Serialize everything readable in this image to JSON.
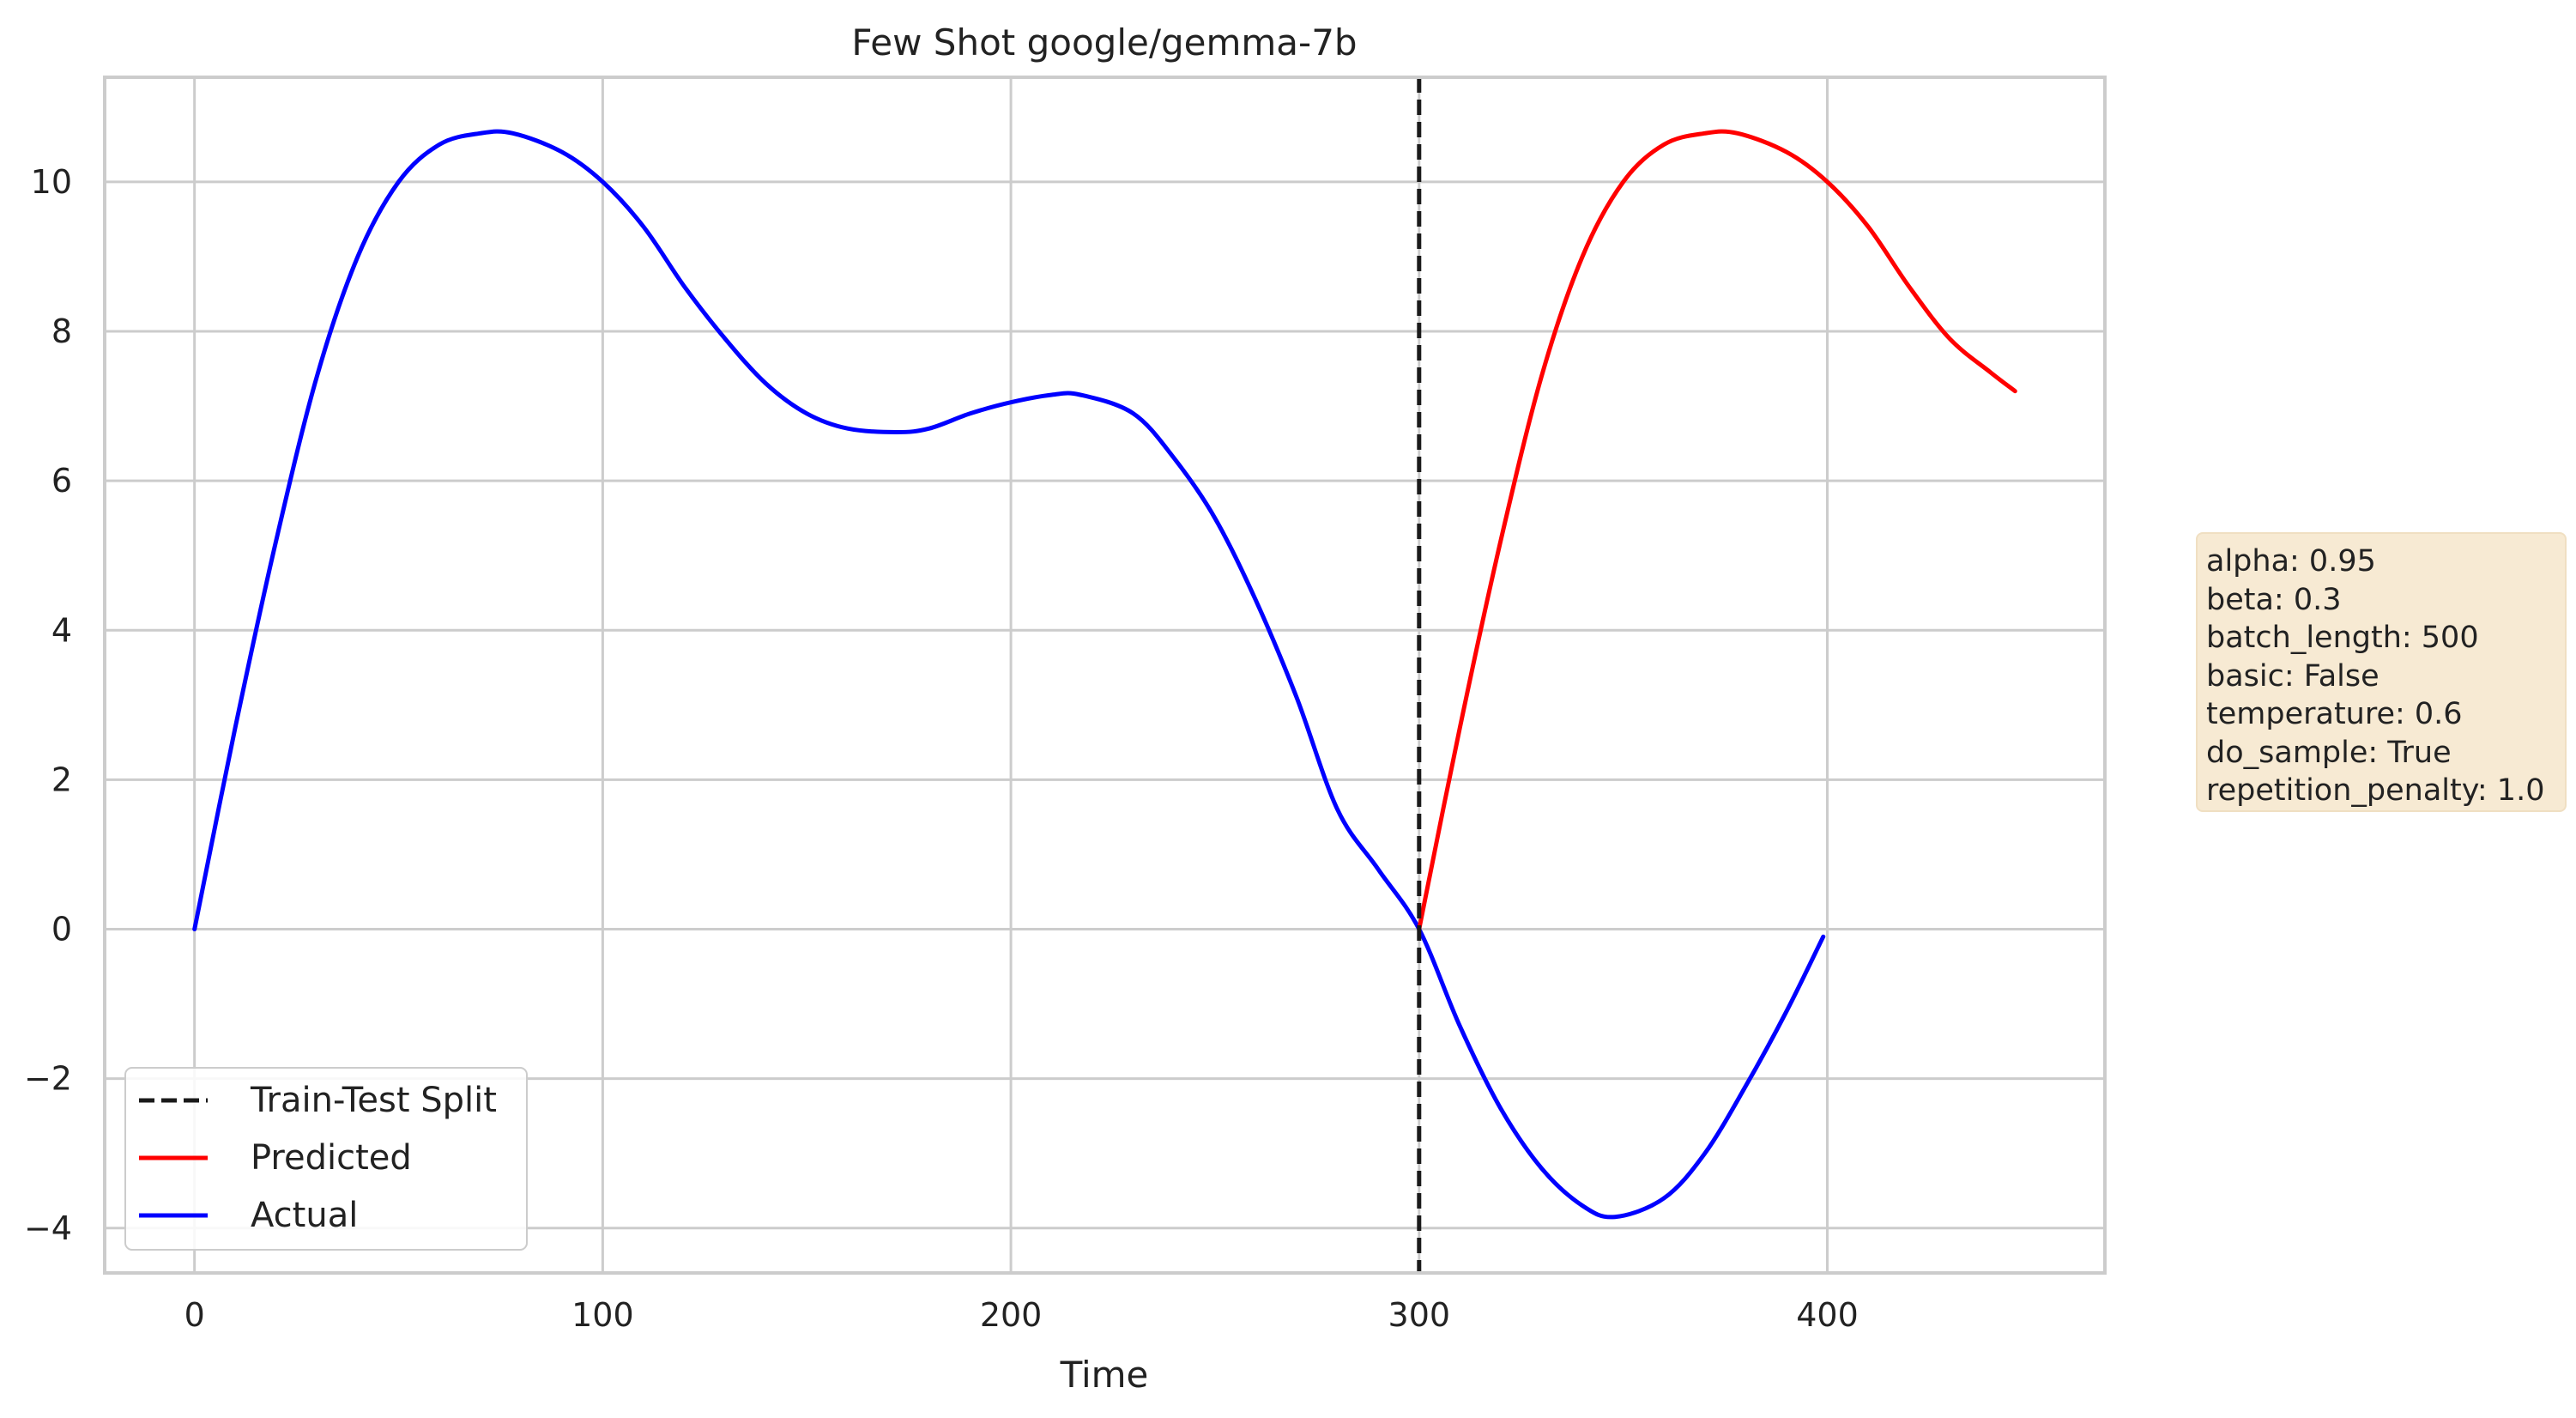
{
  "chart_data": {
    "type": "line",
    "title": "Few Shot google/gemma-7b",
    "xlabel": "Time",
    "ylabel": "",
    "xlim": [
      -22,
      468
    ],
    "ylim": [
      -4.6,
      11.4
    ],
    "xticks": [
      0,
      100,
      200,
      300,
      400
    ],
    "yticks": [
      -4,
      -2,
      0,
      2,
      4,
      6,
      8,
      10
    ],
    "ytick_labels": [
      "−4",
      "−2",
      "0",
      "2",
      "4",
      "6",
      "8",
      "10"
    ],
    "grid": true,
    "legend_position": "lower-left",
    "split_line": {
      "name": "Train-Test Split",
      "x": 300,
      "color": "#1a1a1a",
      "style": "dashed"
    },
    "series": [
      {
        "name": "Actual",
        "color": "#0000ff",
        "x": [
          0,
          10,
          20,
          30,
          40,
          50,
          60,
          70,
          78,
          90,
          100,
          110,
          120,
          130,
          140,
          150,
          160,
          172,
          180,
          190,
          200,
          210,
          217,
          230,
          240,
          250,
          260,
          270,
          280,
          290,
          300,
          310,
          320,
          330,
          340,
          348,
          360,
          370,
          380,
          390,
          399
        ],
        "y": [
          0.0,
          2.7,
          5.2,
          7.4,
          9.0,
          10.0,
          10.5,
          10.65,
          10.65,
          10.4,
          10.0,
          9.4,
          8.6,
          7.9,
          7.3,
          6.9,
          6.7,
          6.65,
          6.7,
          6.9,
          7.05,
          7.15,
          7.15,
          6.9,
          6.3,
          5.5,
          4.4,
          3.1,
          1.6,
          0.8,
          0.0,
          -1.3,
          -2.4,
          -3.2,
          -3.7,
          -3.85,
          -3.6,
          -3.0,
          -2.1,
          -1.1,
          -0.1
        ]
      },
      {
        "name": "Predicted",
        "color": "#ff0000",
        "x": [
          300,
          310,
          320,
          330,
          340,
          350,
          360,
          370,
          378,
          390,
          400,
          410,
          420,
          430,
          440,
          446
        ],
        "y": [
          0.0,
          2.7,
          5.2,
          7.4,
          9.0,
          10.0,
          10.5,
          10.65,
          10.65,
          10.4,
          10.0,
          9.4,
          8.6,
          7.9,
          7.45,
          7.2
        ]
      }
    ],
    "legend_entries": [
      {
        "name": "Train-Test Split",
        "style": "dashed",
        "color": "#1a1a1a"
      },
      {
        "name": "Predicted",
        "style": "solid",
        "color": "#ff0000"
      },
      {
        "name": "Actual",
        "style": "solid",
        "color": "#0000ff"
      }
    ]
  },
  "params_box": {
    "lines": [
      "alpha: 0.95",
      "beta: 0.3",
      "batch_length: 500",
      "basic: False",
      "temperature: 0.6",
      "do_sample: True",
      "repetition_penalty: 1.0"
    ]
  }
}
